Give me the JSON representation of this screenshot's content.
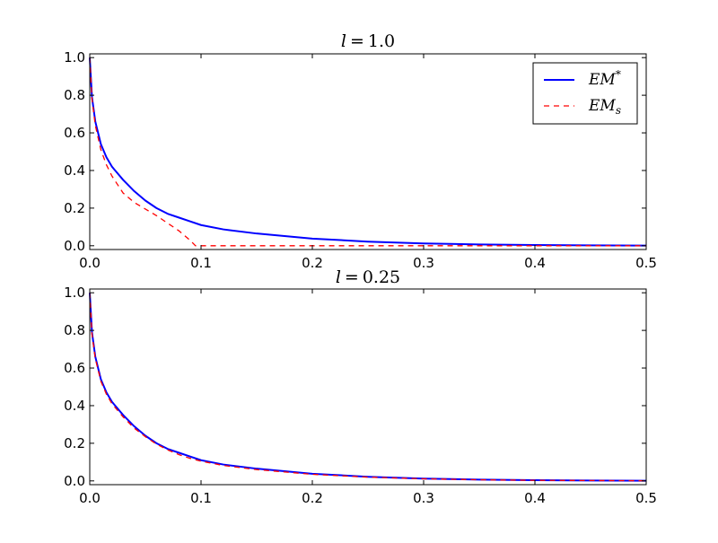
{
  "chart_data": [
    {
      "type": "line",
      "title_var": "l",
      "title_value": "1.0",
      "xlim": [
        0.0,
        0.5
      ],
      "ylim": [
        -0.02,
        1.02
      ],
      "x_ticks": [
        "0.0",
        "0.1",
        "0.2",
        "0.3",
        "0.4",
        "0.5"
      ],
      "y_ticks": [
        "0.0",
        "0.2",
        "0.4",
        "0.6",
        "0.8",
        "1.0"
      ],
      "legend_position": "top-right",
      "grid": false,
      "series": [
        {
          "name_base": "EM",
          "name_mark": "*",
          "name_mark_kind": "sup",
          "color": "#0000ff",
          "style": "solid",
          "x": [
            0.0,
            0.002,
            0.005,
            0.01,
            0.015,
            0.02,
            0.03,
            0.04,
            0.05,
            0.06,
            0.07,
            0.08,
            0.09,
            0.1,
            0.12,
            0.15,
            0.2,
            0.25,
            0.3,
            0.35,
            0.4,
            0.45,
            0.5
          ],
          "y": [
            1.0,
            0.79,
            0.66,
            0.54,
            0.47,
            0.42,
            0.35,
            0.29,
            0.24,
            0.2,
            0.17,
            0.15,
            0.13,
            0.11,
            0.087,
            0.065,
            0.038,
            0.022,
            0.012,
            0.007,
            0.004,
            0.002,
            0.001
          ]
        },
        {
          "name_base": "EM",
          "name_mark": "s",
          "name_mark_kind": "sub",
          "color": "#ff0000",
          "style": "dashed",
          "x": [
            0.0,
            0.002,
            0.005,
            0.01,
            0.015,
            0.02,
            0.03,
            0.04,
            0.05,
            0.06,
            0.07,
            0.08,
            0.09,
            0.095,
            0.1,
            0.15,
            0.2,
            0.25,
            0.3,
            0.35,
            0.4,
            0.45,
            0.5
          ],
          "y": [
            1.0,
            0.78,
            0.64,
            0.51,
            0.43,
            0.37,
            0.28,
            0.23,
            0.195,
            0.16,
            0.12,
            0.08,
            0.03,
            0.0,
            0.0,
            0.0,
            0.0,
            0.0,
            0.0,
            0.0,
            0.0,
            0.0,
            0.0
          ]
        }
      ]
    },
    {
      "type": "line",
      "title_var": "l",
      "title_value": "0.25",
      "xlim": [
        0.0,
        0.5
      ],
      "ylim": [
        -0.02,
        1.02
      ],
      "x_ticks": [
        "0.0",
        "0.1",
        "0.2",
        "0.3",
        "0.4",
        "0.5"
      ],
      "y_ticks": [
        "0.0",
        "0.2",
        "0.4",
        "0.6",
        "0.8",
        "1.0"
      ],
      "legend_position": "none",
      "grid": false,
      "series": [
        {
          "color": "#0000ff",
          "style": "solid",
          "x": [
            0.0,
            0.002,
            0.005,
            0.01,
            0.015,
            0.02,
            0.03,
            0.04,
            0.05,
            0.06,
            0.07,
            0.08,
            0.09,
            0.1,
            0.12,
            0.15,
            0.2,
            0.25,
            0.3,
            0.35,
            0.4,
            0.45,
            0.5
          ],
          "y": [
            1.0,
            0.79,
            0.66,
            0.54,
            0.47,
            0.42,
            0.35,
            0.29,
            0.24,
            0.2,
            0.17,
            0.15,
            0.13,
            0.11,
            0.087,
            0.065,
            0.038,
            0.022,
            0.012,
            0.007,
            0.004,
            0.002,
            0.001
          ]
        },
        {
          "color": "#ff0000",
          "style": "dashed",
          "x": [
            0.0,
            0.002,
            0.005,
            0.01,
            0.015,
            0.02,
            0.03,
            0.04,
            0.05,
            0.06,
            0.07,
            0.08,
            0.09,
            0.1,
            0.12,
            0.15,
            0.2,
            0.25,
            0.3,
            0.35,
            0.4,
            0.45,
            0.5
          ],
          "y": [
            1.0,
            0.78,
            0.65,
            0.53,
            0.46,
            0.41,
            0.34,
            0.28,
            0.235,
            0.195,
            0.165,
            0.14,
            0.12,
            0.105,
            0.082,
            0.06,
            0.035,
            0.02,
            0.011,
            0.006,
            0.003,
            0.002,
            0.001
          ]
        }
      ]
    }
  ]
}
